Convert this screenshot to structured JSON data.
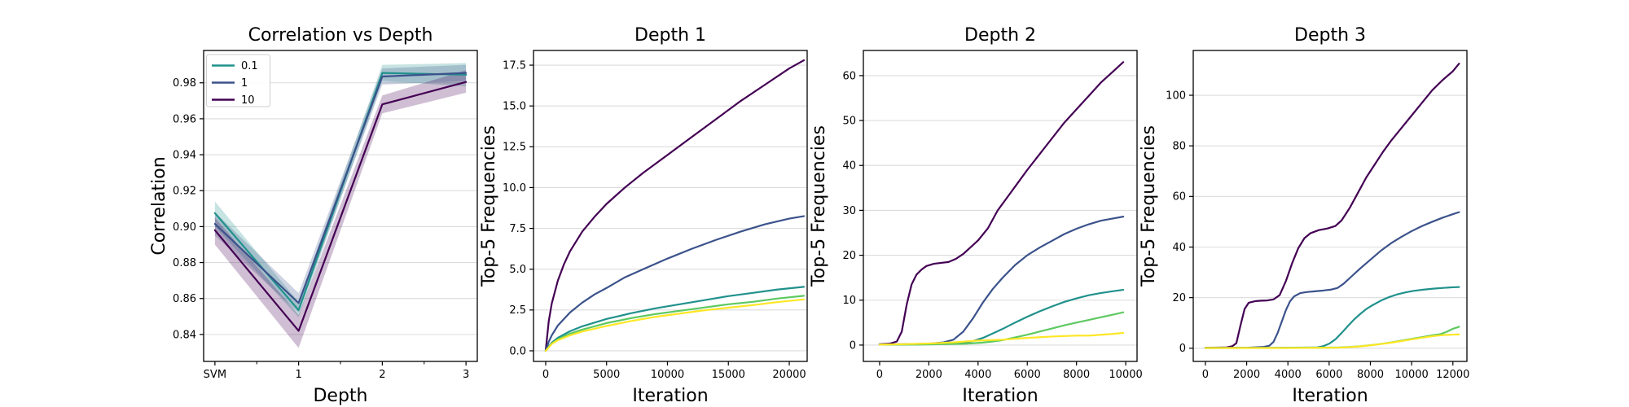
{
  "figure": {
    "background": "#ffffff",
    "grid_color": "#dcdcdc",
    "spine_color": "#000000",
    "band_opacity": 0.25
  },
  "chart_data": [
    {
      "type": "line",
      "title": "Correlation vs Depth",
      "xlabel": "Depth",
      "ylabel": "Correlation",
      "xlim": [
        -0.135,
        3.135
      ],
      "ylim": [
        0.825,
        0.998
      ],
      "grid": "y",
      "xticks": [
        {
          "v": 0,
          "label": "SVM"
        },
        {
          "v": 1,
          "label": "1"
        },
        {
          "v": 2,
          "label": "2"
        },
        {
          "v": 3,
          "label": "3"
        }
      ],
      "xminor": [
        0.5,
        1.5,
        2.5
      ],
      "yticks": [
        {
          "v": 0.84,
          "label": "0.84"
        },
        {
          "v": 0.86,
          "label": "0.86"
        },
        {
          "v": 0.88,
          "label": "0.88"
        },
        {
          "v": 0.9,
          "label": "0.90"
        },
        {
          "v": 0.92,
          "label": "0.92"
        },
        {
          "v": 0.94,
          "label": "0.94"
        },
        {
          "v": 0.96,
          "label": "0.96"
        },
        {
          "v": 0.98,
          "label": "0.98"
        }
      ],
      "legend": {
        "position": "upper-left",
        "entries": [
          {
            "label": "0.1",
            "color": "#21918c"
          },
          {
            "label": "1",
            "color": "#3b528b"
          },
          {
            "label": "10",
            "color": "#440154"
          }
        ]
      },
      "series": [
        {
          "name": "0.1",
          "color": "#21918c",
          "x": [
            0,
            1,
            2,
            3
          ],
          "y": [
            0.9075,
            0.8535,
            0.9855,
            0.9845
          ],
          "band_low": [
            0.9,
            0.8495,
            0.981,
            0.978
          ],
          "band_high": [
            0.914,
            0.858,
            0.99,
            0.991
          ]
        },
        {
          "name": "1",
          "color": "#3b528b",
          "x": [
            0,
            1,
            2,
            3
          ],
          "y": [
            0.9015,
            0.8575,
            0.9835,
            0.9855
          ],
          "band_low": [
            0.895,
            0.852,
            0.979,
            0.981
          ],
          "band_high": [
            0.908,
            0.863,
            0.988,
            0.99
          ]
        },
        {
          "name": "10",
          "color": "#440154",
          "x": [
            0,
            1,
            2,
            3
          ],
          "y": [
            0.898,
            0.842,
            0.968,
            0.9805
          ],
          "band_low": [
            0.89,
            0.8325,
            0.963,
            0.9745
          ],
          "band_high": [
            0.905,
            0.851,
            0.973,
            0.987
          ]
        }
      ]
    },
    {
      "type": "line",
      "title": "Depth 1",
      "xlabel": "Iteration",
      "ylabel": "Top-5 Frequencies",
      "xlim": [
        -1000,
        21470
      ],
      "ylim": [
        -0.65,
        18.4
      ],
      "grid": "y",
      "xticks": [
        {
          "v": 0,
          "label": "0"
        },
        {
          "v": 5000,
          "label": "5000"
        },
        {
          "v": 10000,
          "label": "10000"
        },
        {
          "v": 15000,
          "label": "15000"
        },
        {
          "v": 20000,
          "label": "20000"
        }
      ],
      "yticks": [
        {
          "v": 0,
          "label": "0.0"
        },
        {
          "v": 2.5,
          "label": "2.5"
        },
        {
          "v": 5,
          "label": "5.0"
        },
        {
          "v": 7.5,
          "label": "7.5"
        },
        {
          "v": 10,
          "label": "10.0"
        },
        {
          "v": 12.5,
          "label": "12.5"
        },
        {
          "v": 15,
          "label": "15.0"
        },
        {
          "v": 17.5,
          "label": "17.5"
        }
      ],
      "series": [
        {
          "name": "purple",
          "color": "#440154",
          "x": [
            0,
            250,
            500,
            1000,
            1500,
            2000,
            3000,
            4000,
            5000,
            6500,
            8000,
            10000,
            12000,
            14000,
            16000,
            18000,
            20000,
            21200
          ],
          "y": [
            0,
            1.8,
            2.9,
            4.3,
            5.3,
            6.1,
            7.3,
            8.2,
            9.0,
            10.0,
            10.9,
            12.0,
            13.1,
            14.2,
            15.3,
            16.3,
            17.3,
            17.8
          ]
        },
        {
          "name": "blue",
          "color": "#3b528b",
          "x": [
            0,
            250,
            500,
            1000,
            2000,
            3000,
            4000,
            5000,
            6500,
            8000,
            10000,
            12000,
            14000,
            16000,
            18000,
            20000,
            21200
          ],
          "y": [
            0,
            0.55,
            0.95,
            1.55,
            2.35,
            2.95,
            3.45,
            3.85,
            4.5,
            5.0,
            5.65,
            6.25,
            6.8,
            7.3,
            7.75,
            8.1,
            8.25
          ]
        },
        {
          "name": "teal",
          "color": "#21918c",
          "x": [
            0,
            500,
            1000,
            2000,
            3000,
            5000,
            7000,
            9000,
            11000,
            13000,
            15000,
            17000,
            19000,
            21200
          ],
          "y": [
            0,
            0.5,
            0.8,
            1.2,
            1.5,
            1.95,
            2.3,
            2.6,
            2.85,
            3.1,
            3.35,
            3.55,
            3.75,
            3.92
          ]
        },
        {
          "name": "green",
          "color": "#5ec962",
          "x": [
            0,
            500,
            1000,
            2000,
            3000,
            5000,
            7000,
            9000,
            11000,
            13000,
            15000,
            17000,
            19000,
            21200
          ],
          "y": [
            0,
            0.45,
            0.7,
            1.05,
            1.3,
            1.7,
            2.0,
            2.25,
            2.45,
            2.65,
            2.85,
            3.0,
            3.2,
            3.37
          ]
        },
        {
          "name": "yellow",
          "color": "#fde725",
          "x": [
            0,
            500,
            1000,
            2000,
            3000,
            5000,
            7000,
            9000,
            11000,
            13000,
            15000,
            17000,
            19000,
            21200
          ],
          "y": [
            0,
            0.42,
            0.65,
            0.95,
            1.18,
            1.52,
            1.82,
            2.08,
            2.28,
            2.48,
            2.64,
            2.8,
            2.98,
            3.15
          ]
        }
      ]
    },
    {
      "type": "line",
      "title": "Depth 2",
      "xlabel": "Iteration",
      "ylabel": "Top-5 Frequencies",
      "xlim": [
        -660,
        10460
      ],
      "ylim": [
        -3.64,
        65.6
      ],
      "grid": "y",
      "xticks": [
        {
          "v": 0,
          "label": "0"
        },
        {
          "v": 2000,
          "label": "2000"
        },
        {
          "v": 4000,
          "label": "4000"
        },
        {
          "v": 6000,
          "label": "6000"
        },
        {
          "v": 8000,
          "label": "8000"
        },
        {
          "v": 10000,
          "label": "10000"
        }
      ],
      "yticks": [
        {
          "v": 0,
          "label": "0"
        },
        {
          "v": 10,
          "label": "10"
        },
        {
          "v": 20,
          "label": "20"
        },
        {
          "v": 30,
          "label": "30"
        },
        {
          "v": 40,
          "label": "40"
        },
        {
          "v": 50,
          "label": "50"
        },
        {
          "v": 60,
          "label": "60"
        }
      ],
      "series": [
        {
          "name": "purple",
          "color": "#440154",
          "x": [
            0,
            400,
            700,
            900,
            1100,
            1300,
            1500,
            1700,
            1900,
            2200,
            2500,
            2800,
            3100,
            3400,
            3700,
            4000,
            4400,
            4800,
            5200,
            5600,
            6000,
            6500,
            7000,
            7500,
            8000,
            8500,
            9000,
            9500,
            9900
          ],
          "y": [
            0.2,
            0.3,
            0.8,
            3,
            9,
            13.5,
            15.7,
            16.8,
            17.6,
            18.1,
            18.3,
            18.5,
            19.2,
            20.3,
            21.8,
            23.3,
            26,
            30,
            33,
            36,
            39,
            42.5,
            46,
            49.5,
            52.5,
            55.5,
            58.5,
            61,
            63
          ]
        },
        {
          "name": "blue",
          "color": "#3b528b",
          "x": [
            0,
            1000,
            2000,
            2600,
            3000,
            3400,
            3800,
            4200,
            4600,
            5000,
            5500,
            6000,
            6500,
            7000,
            7500,
            8000,
            8500,
            9000,
            9500,
            9900
          ],
          "y": [
            0.15,
            0.2,
            0.3,
            0.6,
            1.2,
            3,
            6,
            9.5,
            12.5,
            15,
            17.8,
            20,
            21.7,
            23.2,
            24.7,
            25.9,
            26.9,
            27.7,
            28.2,
            28.6
          ]
        },
        {
          "name": "teal",
          "color": "#21918c",
          "x": [
            0,
            1500,
            3000,
            3400,
            3800,
            4200,
            4600,
            5000,
            5500,
            6000,
            6500,
            7000,
            7500,
            8000,
            8500,
            9000,
            9500,
            9900
          ],
          "y": [
            0.1,
            0.15,
            0.3,
            0.5,
            0.9,
            1.6,
            2.6,
            3.6,
            5,
            6.3,
            7.5,
            8.6,
            9.6,
            10.4,
            11.1,
            11.6,
            12,
            12.3
          ]
        },
        {
          "name": "green",
          "color": "#5ec962",
          "x": [
            0,
            2000,
            3500,
            4200,
            4600,
            5000,
            5500,
            6000,
            6500,
            7000,
            7500,
            8000,
            8500,
            9000,
            9500,
            9900
          ],
          "y": [
            0.1,
            0.15,
            0.3,
            0.55,
            0.8,
            1.1,
            1.7,
            2.3,
            3,
            3.7,
            4.4,
            5,
            5.6,
            6.2,
            6.8,
            7.3
          ]
        },
        {
          "name": "yellow",
          "color": "#fde725",
          "x": [
            0,
            1000,
            2000,
            3000,
            4000,
            5000,
            5500,
            6000,
            7000,
            8000,
            8500,
            9000,
            9500,
            9900
          ],
          "y": [
            0.1,
            0.2,
            0.35,
            0.6,
            1.0,
            1.2,
            1.4,
            1.6,
            1.9,
            2.1,
            2.1,
            2.3,
            2.5,
            2.7
          ]
        }
      ]
    },
    {
      "type": "line",
      "title": "Depth 3",
      "xlabel": "Iteration",
      "ylabel": "Top-5 Frequencies",
      "xlim": [
        -590,
        12680
      ],
      "ylim": [
        -5.2,
        117.7
      ],
      "grid": "y",
      "xticks": [
        {
          "v": 0,
          "label": "0"
        },
        {
          "v": 2000,
          "label": "2000"
        },
        {
          "v": 4000,
          "label": "4000"
        },
        {
          "v": 6000,
          "label": "6000"
        },
        {
          "v": 8000,
          "label": "8000"
        },
        {
          "v": 10000,
          "label": "10000"
        },
        {
          "v": 12000,
          "label": "12000"
        }
      ],
      "yticks": [
        {
          "v": 0,
          "label": "0"
        },
        {
          "v": 20,
          "label": "20"
        },
        {
          "v": 40,
          "label": "40"
        },
        {
          "v": 60,
          "label": "60"
        },
        {
          "v": 80,
          "label": "80"
        },
        {
          "v": 100,
          "label": "100"
        }
      ],
      "series": [
        {
          "name": "purple",
          "color": "#440154",
          "x": [
            0,
            1000,
            1300,
            1500,
            1700,
            1900,
            2100,
            2400,
            2700,
            3000,
            3300,
            3600,
            3900,
            4200,
            4500,
            4800,
            5100,
            5500,
            5900,
            6300,
            6600,
            7000,
            7400,
            7800,
            8200,
            8600,
            9000,
            9500,
            10000,
            10500,
            11000,
            11500,
            12000,
            12300
          ],
          "y": [
            0.2,
            0.3,
            0.8,
            2,
            9,
            15.5,
            18,
            18.6,
            18.8,
            18.9,
            19.3,
            21,
            26.5,
            33.5,
            39.5,
            43.5,
            45.5,
            46.7,
            47.3,
            48.3,
            50.5,
            55.5,
            61.5,
            67.5,
            72.5,
            77.5,
            82,
            87,
            92,
            97,
            102,
            106,
            109.5,
            112.5
          ]
        },
        {
          "name": "blue",
          "color": "#3b528b",
          "x": [
            0,
            2000,
            2800,
            3100,
            3300,
            3500,
            3700,
            3900,
            4100,
            4300,
            4600,
            4900,
            5300,
            5700,
            6100,
            6400,
            6700,
            7100,
            7500,
            8000,
            8500,
            9000,
            9500,
            10000,
            10500,
            11000,
            11500,
            12000,
            12300
          ],
          "y": [
            0.15,
            0.2,
            0.5,
            1,
            2.5,
            6,
            10.5,
            15,
            18.5,
            20.5,
            21.8,
            22.2,
            22.5,
            22.8,
            23.2,
            23.8,
            25.5,
            28.5,
            31.5,
            35,
            38.5,
            41.5,
            44,
            46.3,
            48.3,
            50,
            51.6,
            53,
            53.8
          ]
        },
        {
          "name": "teal",
          "color": "#21918c",
          "x": [
            0,
            3000,
            5400,
            5700,
            6000,
            6300,
            6600,
            6900,
            7200,
            7500,
            7800,
            8100,
            8500,
            8900,
            9300,
            9700,
            10100,
            10600,
            11100,
            11600,
            12000,
            12300
          ],
          "y": [
            0.1,
            0.15,
            0.3,
            0.8,
            1.8,
            3.5,
            6,
            8.7,
            11.3,
            13.5,
            15.5,
            17,
            18.8,
            20.2,
            21.3,
            22.1,
            22.7,
            23.2,
            23.6,
            23.9,
            24.1,
            24.2
          ]
        },
        {
          "name": "green",
          "color": "#5ec962",
          "x": [
            0,
            4000,
            6500,
            7000,
            7500,
            8000,
            8500,
            9000,
            9500,
            10000,
            10500,
            11000,
            11400,
            11700,
            12000,
            12300
          ],
          "y": [
            0.1,
            0.15,
            0.3,
            0.5,
            0.8,
            1.2,
            1.7,
            2.3,
            3.0,
            3.7,
            4.4,
            5.1,
            5.6,
            6.5,
            7.7,
            8.5
          ]
        },
        {
          "name": "yellow",
          "color": "#fde725",
          "x": [
            0,
            4000,
            6500,
            7000,
            7500,
            8000,
            8500,
            9000,
            9500,
            10000,
            10500,
            11000,
            11500,
            12000,
            12300
          ],
          "y": [
            0.1,
            0.12,
            0.25,
            0.45,
            0.75,
            1.15,
            1.65,
            2.2,
            2.85,
            3.5,
            4.15,
            4.75,
            5.2,
            5.4,
            5.45
          ]
        }
      ]
    }
  ]
}
